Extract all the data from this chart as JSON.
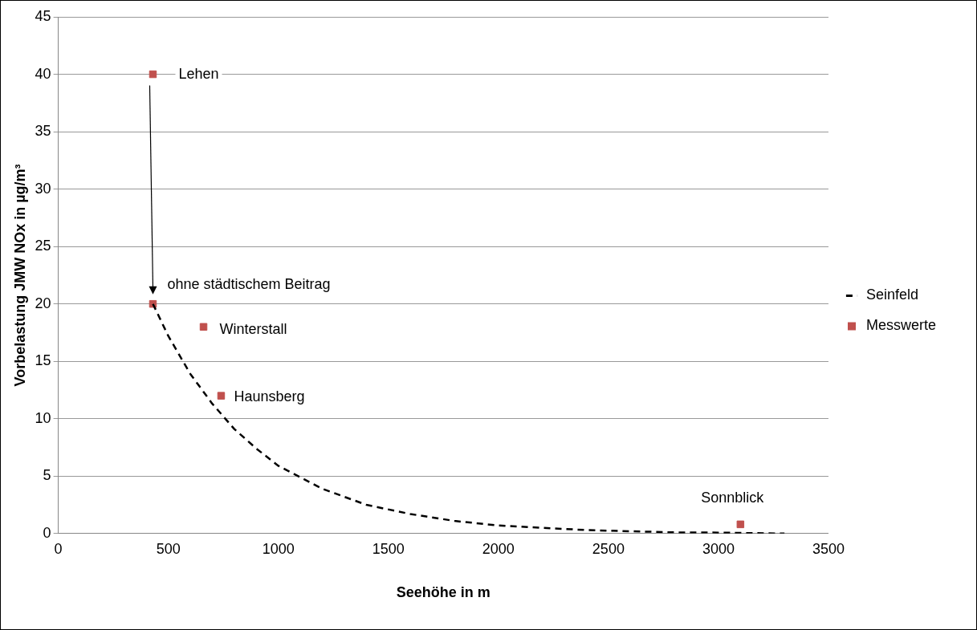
{
  "chart_data": {
    "type": "scatter",
    "xlabel": "Seehöhe in m",
    "ylabel": "Vorbelastung JMW NOx in µg/m³",
    "xlim": [
      0,
      3500
    ],
    "xticks": [
      0,
      500,
      1000,
      1500,
      2000,
      2500,
      3000,
      3500
    ],
    "ylim": [
      0,
      45
    ],
    "yticks": [
      0,
      5,
      10,
      15,
      20,
      25,
      30,
      35,
      40,
      45
    ],
    "grid": "y",
    "legend": "right",
    "series": [
      {
        "name": "Seinfeld",
        "type": "line",
        "color": "#000000",
        "line_style": "dashed",
        "marker": "none",
        "x": [
          430,
          500,
          600,
          700,
          800,
          900,
          1000,
          1200,
          1400,
          1600,
          1800,
          2000,
          2200,
          2400,
          2600,
          2800,
          3000,
          3300
        ],
        "values": [
          20,
          17.2,
          13.9,
          11.3,
          9.1,
          7.4,
          5.9,
          3.9,
          2.5,
          1.7,
          1.1,
          0.7,
          0.5,
          0.3,
          0.2,
          0.1,
          0.08,
          0.0
        ]
      },
      {
        "name": "Messwerte",
        "type": "scatter",
        "color": "#c0504d",
        "marker": "square",
        "x": [
          430,
          430,
          660,
          740,
          3100
        ],
        "values": [
          40,
          20,
          18,
          12,
          0.8
        ]
      }
    ],
    "annotations": [
      {
        "text": "Lehen",
        "x": 430,
        "y": 40
      },
      {
        "text": "ohne städtischem Beitrag",
        "x": 430,
        "y": 20
      },
      {
        "text": "Winterstall",
        "x": 660,
        "y": 18
      },
      {
        "text": "Haunsberg",
        "x": 740,
        "y": 12
      },
      {
        "text": "Sonnblick",
        "x": 3100,
        "y": 0.8
      }
    ]
  }
}
